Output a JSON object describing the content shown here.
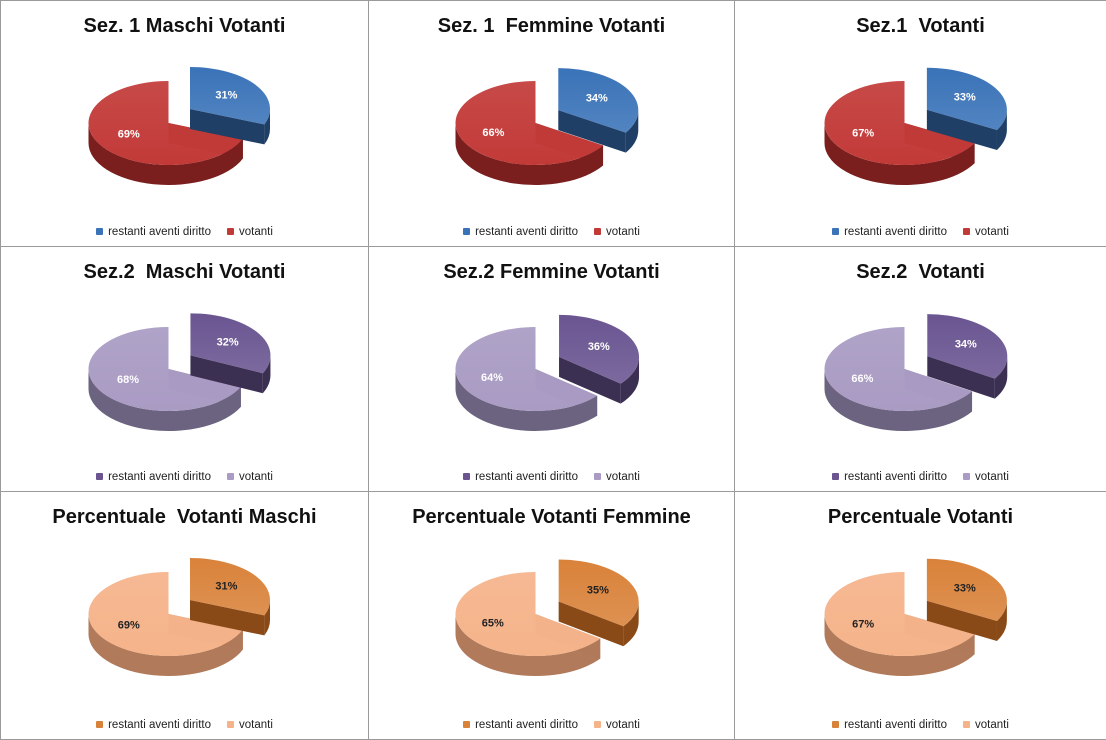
{
  "chart_data": [
    {
      "type": "pie",
      "title": "Sez. 1 Maschi Votanti",
      "categories": [
        "restanti aventi diritto",
        "votanti"
      ],
      "values": [
        31,
        69
      ],
      "labels": [
        "31%",
        "69%"
      ],
      "palette": "red_blue"
    },
    {
      "type": "pie",
      "title": "Sez. 1  Femmine Votanti",
      "categories": [
        "restanti aventi diritto",
        "votanti"
      ],
      "values": [
        34,
        66
      ],
      "labels": [
        "34%",
        "66%"
      ],
      "palette": "red_blue"
    },
    {
      "type": "pie",
      "title": "Sez.1  Votanti",
      "categories": [
        "restanti aventi diritto",
        "votanti"
      ],
      "values": [
        33,
        67
      ],
      "labels": [
        "33%",
        "67%"
      ],
      "palette": "red_blue"
    },
    {
      "type": "pie",
      "title": "Sez.2  Maschi Votanti",
      "categories": [
        "restanti aventi diritto",
        "votanti"
      ],
      "values": [
        32,
        68
      ],
      "labels": [
        "32%",
        "68%"
      ],
      "palette": "purple"
    },
    {
      "type": "pie",
      "title": "Sez.2 Femmine Votanti",
      "categories": [
        "restanti aventi diritto",
        "votanti"
      ],
      "values": [
        36,
        64
      ],
      "labels": [
        "36%",
        "64%"
      ],
      "palette": "purple"
    },
    {
      "type": "pie",
      "title": "Sez.2  Votanti",
      "categories": [
        "restanti aventi diritto",
        "votanti"
      ],
      "values": [
        34,
        66
      ],
      "labels": [
        "34%",
        "66%"
      ],
      "palette": "purple"
    },
    {
      "type": "pie",
      "title": "Percentuale  Votanti Maschi",
      "categories": [
        "restanti aventi diritto",
        "votanti"
      ],
      "values": [
        31,
        69
      ],
      "labels": [
        "31%",
        "69%"
      ],
      "palette": "orange"
    },
    {
      "type": "pie",
      "title": "Percentuale Votanti Femmine",
      "categories": [
        "restanti aventi diritto",
        "votanti"
      ],
      "values": [
        35,
        65
      ],
      "labels": [
        "35%",
        "65%"
      ],
      "palette": "orange"
    },
    {
      "type": "pie",
      "title": "Percentuale Votanti",
      "categories": [
        "restanti aventi diritto",
        "votanti"
      ],
      "values": [
        33,
        67
      ],
      "labels": [
        "33%",
        "67%"
      ],
      "palette": "orange"
    }
  ],
  "palettes": {
    "red_blue": {
      "slice_a_top": "#3a73b8",
      "slice_a_side": "#1f3f66",
      "slice_b_top": "#c23a38",
      "slice_b_side": "#7a1f1e",
      "swatch_a": "#3a73b8",
      "swatch_b": "#c23a38",
      "text_a": "#ffffff",
      "text_b": "#ffffff"
    },
    "purple": {
      "slice_a_top": "#6a5591",
      "slice_a_side": "#3b2f52",
      "slice_b_top": "#a99bc3",
      "slice_b_side": "#6c6380",
      "swatch_a": "#6a5591",
      "swatch_b": "#a99bc3",
      "text_a": "#ffffff",
      "text_b": "#ffffff"
    },
    "orange": {
      "slice_a_top": "#d9823a",
      "slice_a_side": "#8a4a17",
      "slice_b_top": "#f5b38a",
      "slice_b_side": "#b07a5b",
      "swatch_a": "#d9823a",
      "swatch_b": "#f5b38a",
      "text_a": "#222222",
      "text_b": "#222222"
    }
  }
}
